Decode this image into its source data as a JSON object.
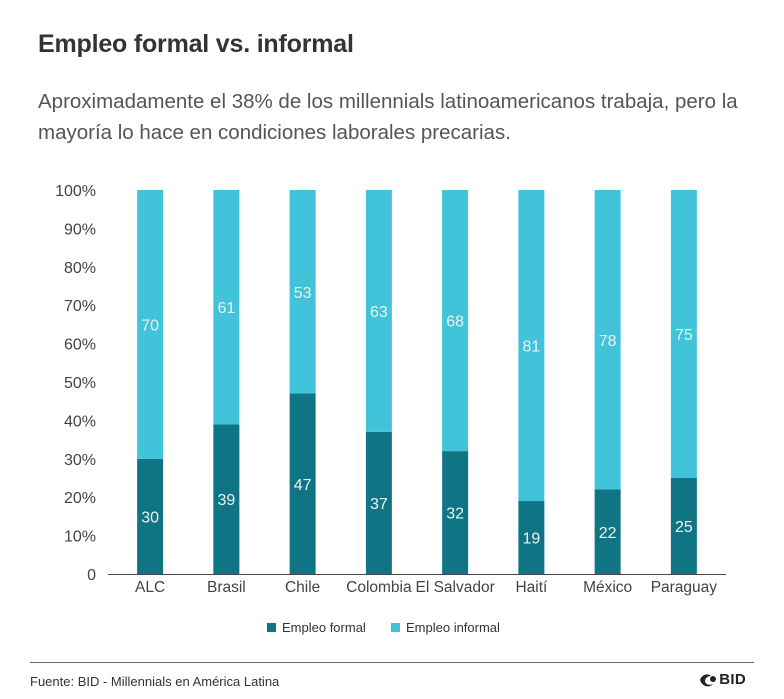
{
  "title": "Empleo formal vs. informal",
  "subtitle": "Aproximadamente el 38% de los millennials latinoamericanos trabaja, pero la mayoría lo hace en condiciones laborales precarias.",
  "source": "Fuente: BID - Millennials en América Latina",
  "brand": "BID",
  "colors": {
    "formal": "#0f7585",
    "informal": "#41c4da",
    "axis": "#4a4a4a",
    "label": "#f0f0f0"
  },
  "chart_data": {
    "type": "bar",
    "stacked": true,
    "categories": [
      "ALC",
      "Brasil",
      "Chile",
      "Colombia",
      "El Salvador",
      "Haití",
      "México",
      "Paraguay"
    ],
    "series": [
      {
        "name": "Empleo formal",
        "values": [
          30,
          39,
          47,
          37,
          32,
          19,
          22,
          25
        ]
      },
      {
        "name": "Empleo informal",
        "values": [
          70,
          61,
          53,
          63,
          68,
          81,
          78,
          75
        ]
      }
    ],
    "y_ticks": [
      "0",
      "10%",
      "20%",
      "30%",
      "40%",
      "50%",
      "60%",
      "70%",
      "80%",
      "90%",
      "100%"
    ],
    "ylim": [
      0,
      100
    ],
    "grid": false,
    "legend_position": "bottom"
  }
}
